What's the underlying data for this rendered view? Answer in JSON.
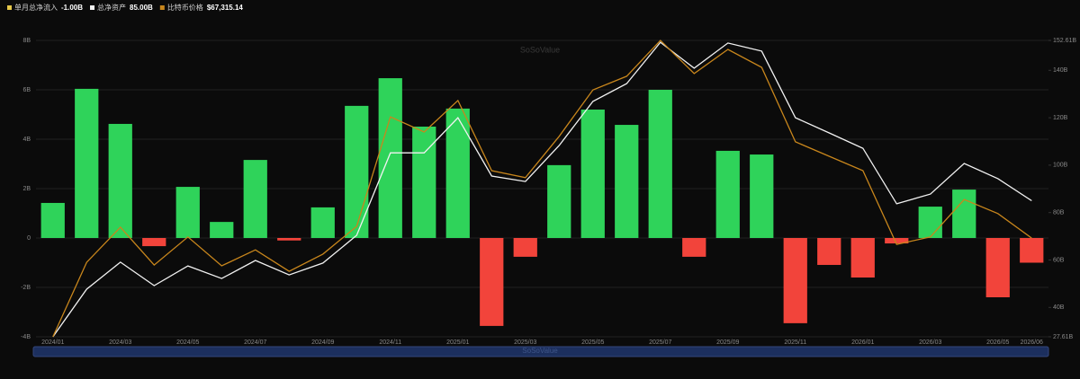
{
  "chart_data": {
    "type": "bar-line",
    "watermark": "SoSoValue",
    "categories": [
      "2024/01",
      null,
      "2024/03",
      null,
      "2024/05",
      null,
      "2024/07",
      null,
      "2024/09",
      null,
      "2024/11",
      null,
      "2025/01",
      null,
      "2025/03",
      null,
      "2025/05",
      null,
      "2025/07",
      null,
      "2025/09",
      null,
      "2025/11",
      null,
      "2026/01",
      null,
      "2026/03",
      null,
      "2026/05",
      "2026/06"
    ],
    "series": [
      {
        "name": "单月总净流入",
        "current_label": "-1.00B",
        "type": "bar",
        "color": "#2fd35a",
        "negative_color": "#f2443b",
        "legend_color": "#e6c84a",
        "values": [
          1.42,
          6.04,
          4.62,
          -0.33,
          2.07,
          0.65,
          3.16,
          -0.1,
          1.24,
          5.35,
          6.47,
          4.51,
          5.24,
          -3.56,
          -0.76,
          2.95,
          5.2,
          4.58,
          6.0,
          -0.76,
          3.53,
          3.38,
          -3.45,
          -1.09,
          -1.6,
          -0.22,
          1.27,
          1.96,
          -2.4,
          -1.0
        ]
      },
      {
        "name": "总净资产",
        "current_label": "85.00B",
        "type": "line",
        "axis": "y2",
        "color": "#f2f2f2",
        "values": [
          27.61,
          47.7,
          59.1,
          49.2,
          57.5,
          52.2,
          59.8,
          53.7,
          58.7,
          70.4,
          105.2,
          105.2,
          120.0,
          95.4,
          93.1,
          108.3,
          126.9,
          134.4,
          151.8,
          140.9,
          151.5,
          148.1,
          120.0,
          113.6,
          107.1,
          83.7,
          87.8,
          100.7,
          94.3,
          85.0
        ]
      },
      {
        "name": "比特币价格",
        "current_label": "$67,315.14",
        "type": "line",
        "axis": "y3",
        "color": "#c8861c",
        "values": [
          42000,
          61100,
          70100,
          60400,
          67600,
          60200,
          64300,
          58800,
          63200,
          70300,
          98400,
          94500,
          102600,
          84600,
          82800,
          93400,
          105300,
          108800,
          118000,
          109500,
          115700,
          111100,
          92000,
          88300,
          84600,
          65700,
          67600,
          77200,
          73600,
          67315.14
        ]
      }
    ],
    "ylim": [
      -4,
      8
    ],
    "yticks": [
      {
        "value": 8,
        "label": "8B"
      },
      {
        "value": 6,
        "label": "6B"
      },
      {
        "value": 4,
        "label": "4B"
      },
      {
        "value": 2,
        "label": "2B"
      },
      0,
      {
        "value": -2,
        "label": "-2B"
      },
      {
        "value": -4,
        "label": "-4B"
      }
    ],
    "y2lim": [
      27.61,
      152.61
    ],
    "y2ticks": [
      {
        "value": 152.61,
        "label": "152.61B"
      },
      {
        "value": 140,
        "label": "140B"
      },
      {
        "value": 120,
        "label": "120B"
      },
      {
        "value": 100,
        "label": "100B"
      },
      {
        "value": 80,
        "label": "80B"
      },
      {
        "value": 60,
        "label": "60B"
      },
      {
        "value": 40,
        "label": "40B"
      },
      {
        "value": 27.61,
        "label": "27.61B"
      }
    ],
    "y3lim": [
      42000,
      118000
    ],
    "grid": true
  }
}
